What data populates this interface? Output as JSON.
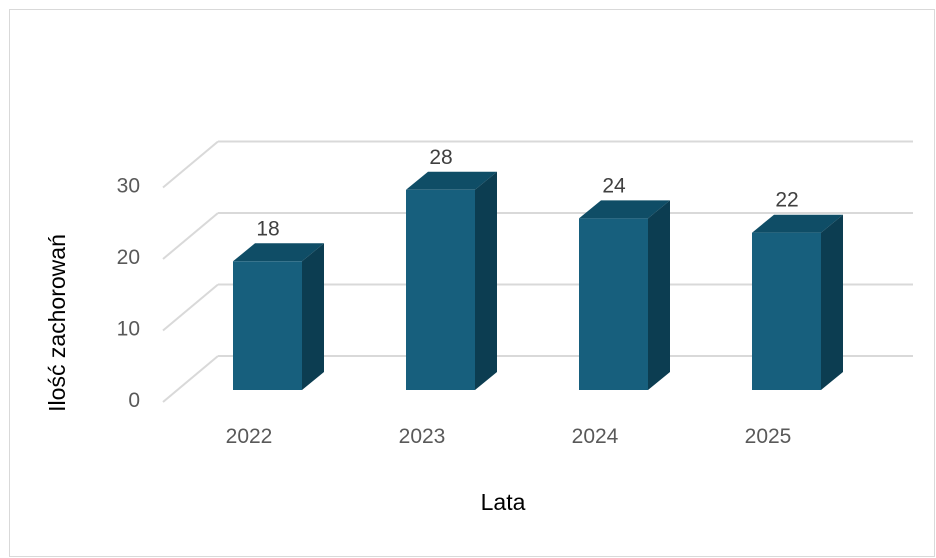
{
  "chart_data": {
    "type": "bar",
    "style": "3d-column",
    "title": "",
    "categories": [
      "2022",
      "2023",
      "2024",
      "2025"
    ],
    "values": [
      18,
      28,
      24,
      22
    ],
    "data_labels": [
      "18",
      "28",
      "24",
      "22"
    ],
    "xlabel": "Lata",
    "ylabel": "Ilość zachorowań",
    "yticks": [
      "0",
      "10",
      "20",
      "30"
    ],
    "ylim": [
      0,
      30
    ],
    "grid": true,
    "legend": "none",
    "colors": {
      "bar_front": "#175f7d",
      "bar_side": "#0c3d51",
      "bar_top": "#0f4d66",
      "grid": "#d9d9d9",
      "tick_text": "#595959",
      "label_text": "#404040"
    }
  }
}
